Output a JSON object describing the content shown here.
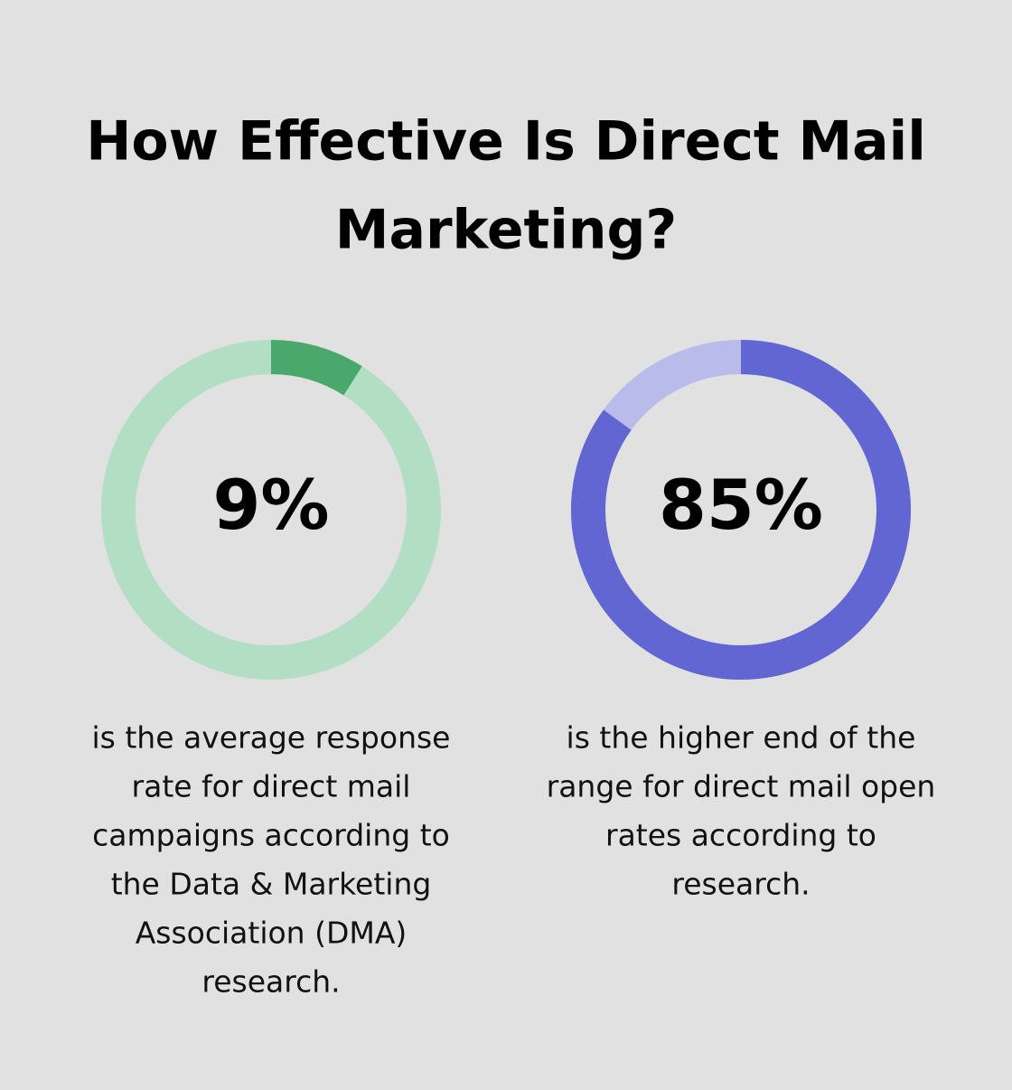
{
  "title_lines": [
    "How Effective Is Direct Mail",
    "Marketing?"
  ],
  "chart_data": [
    {
      "type": "donut",
      "values": [
        9
      ],
      "value_labels": [
        "9%"
      ],
      "ylim": [
        0,
        100
      ],
      "color": "#4ba86c",
      "track_color": "#b2dec4",
      "caption_lines": [
        "is the average response",
        "rate for direct mail",
        "campaigns according to",
        "the Data & Marketing",
        "Association (DMA)",
        "research."
      ]
    },
    {
      "type": "donut",
      "values": [
        85
      ],
      "value_labels": [
        "85%"
      ],
      "ylim": [
        0,
        100
      ],
      "color": "#6166d3",
      "track_color": "#b9bbea",
      "caption_lines": [
        "is the higher end of the",
        "range for direct mail open",
        "rates according to",
        "research."
      ]
    }
  ]
}
